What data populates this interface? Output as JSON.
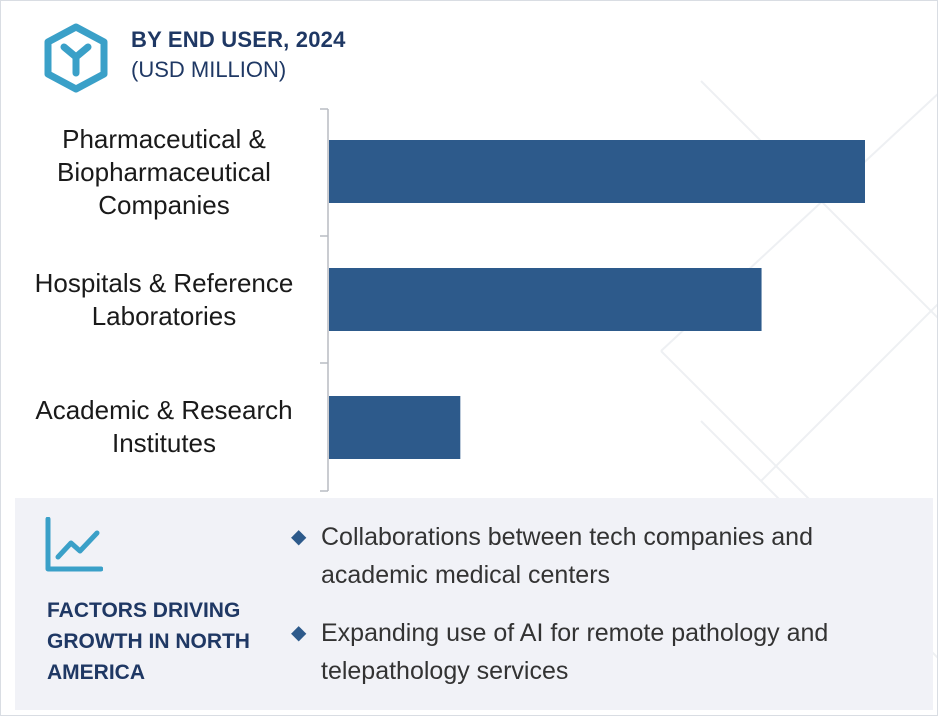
{
  "header": {
    "title": "BY END USER, 2024",
    "subtitle": "(USD MILLION)",
    "logo_icon": "hexagon-y-logo-icon"
  },
  "chart_data": {
    "type": "bar",
    "orientation": "horizontal",
    "categories": [
      "Pharmaceutical &\nBiopharmaceutical\nCompanies",
      "Hospitals & Reference\nLaboratories",
      "Academic & Research\nInstitutes"
    ],
    "values": [
      100,
      80.7,
      24.5
    ],
    "title": "BY END USER, 2024",
    "subtitle": "(USD MILLION)",
    "xlabel": "",
    "ylabel": "",
    "xlim": [
      0,
      100
    ],
    "grid": false,
    "legend": "none",
    "bar_color": "#2d5a8b"
  },
  "factors": {
    "icon": "trend-line-chart-icon",
    "title": "FACTORS DRIVING GROWTH IN NORTH AMERICA",
    "items": [
      "Collaborations between tech companies and academic medical centers",
      "Expanding use of AI for remote pathology and telepathology services"
    ]
  },
  "colors": {
    "accent": "#1f3864",
    "bar": "#2d5a8b",
    "logo": "#3aa0c8",
    "panel_bg": "#f1f2f7"
  }
}
